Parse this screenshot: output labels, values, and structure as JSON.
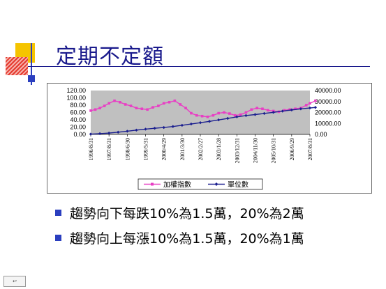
{
  "slide": {
    "title": "定期不定額",
    "bullets": [
      "趨勢向下每跌10%為1.5萬，20%為2萬",
      "趨勢向上每漲10%為1.5萬，20%為1萬"
    ],
    "nav_icon": "return-icon"
  },
  "colors": {
    "title": "#1a1a8c",
    "bullet": "#2b3fbf",
    "plot_bg": "#c0c0c0",
    "index_series": "#e83fc4",
    "units_series": "#1b1f8f",
    "deco_yellow": "#f5c400",
    "deco_red": "#e53a2f",
    "deco_blue": "#2b3fbf"
  },
  "chart_data": {
    "type": "line",
    "x": [
      "1996/8/31",
      "1997/8/31",
      "1998/6/30",
      "1999/5/31",
      "2000/4/29",
      "2001/3/30",
      "2002/2/27",
      "2003/1/28",
      "2003/12/31",
      "2004/11/30",
      "2005/10/31",
      "2006/9/29",
      "2007/8/31"
    ],
    "ylim_left": [
      0,
      120
    ],
    "ylim_right": [
      0,
      40000
    ],
    "yticks_left": [
      "120.00",
      "100.00",
      "80.00",
      "60.00",
      "40.00",
      "20.00",
      "0.00"
    ],
    "yticks_right": [
      "40000.00",
      "30000.00",
      "20000.00",
      "10000.00",
      "0.00"
    ],
    "legend_position": "bottom",
    "series": [
      {
        "name": "加權指數",
        "axis": "left",
        "marker": "square",
        "x": [
          0,
          0.25,
          0.5,
          0.75,
          1,
          1.3,
          1.6,
          1.9,
          2.2,
          2.5,
          2.8,
          3.1,
          3.4,
          3.7,
          4,
          4.3,
          4.6,
          4.9,
          5.2,
          5.5,
          5.8,
          6.1,
          6.4,
          6.7,
          7,
          7.3,
          7.6,
          7.9,
          8.2,
          8.5,
          8.8,
          9.1,
          9.4,
          9.7,
          10,
          10.3,
          10.6,
          10.9,
          11.2,
          11.5,
          11.8,
          12,
          12.3
        ],
        "values": [
          65,
          68,
          72,
          78,
          85,
          92,
          88,
          82,
          78,
          72,
          70,
          68,
          74,
          78,
          85,
          88,
          92,
          82,
          72,
          58,
          52,
          50,
          48,
          52,
          58,
          60,
          57,
          52,
          54,
          60,
          68,
          72,
          70,
          66,
          64,
          62,
          66,
          68,
          70,
          72,
          80,
          85,
          92
        ]
      },
      {
        "name": "單位數",
        "axis": "right",
        "marker": "diamond",
        "x": [
          0,
          0.5,
          1,
          1.5,
          2,
          2.5,
          3,
          3.5,
          4,
          4.5,
          5,
          5.5,
          6,
          6.5,
          7,
          7.5,
          8,
          8.5,
          9,
          9.5,
          10,
          10.5,
          11,
          11.5,
          12,
          12.3
        ],
        "values": [
          300,
          700,
          1200,
          2000,
          2900,
          3900,
          4800,
          5600,
          6300,
          7200,
          8300,
          9500,
          10700,
          11900,
          13200,
          14600,
          16000,
          17200,
          18100,
          19100,
          20100,
          21200,
          22300,
          23300,
          24100,
          24600
        ]
      }
    ]
  }
}
